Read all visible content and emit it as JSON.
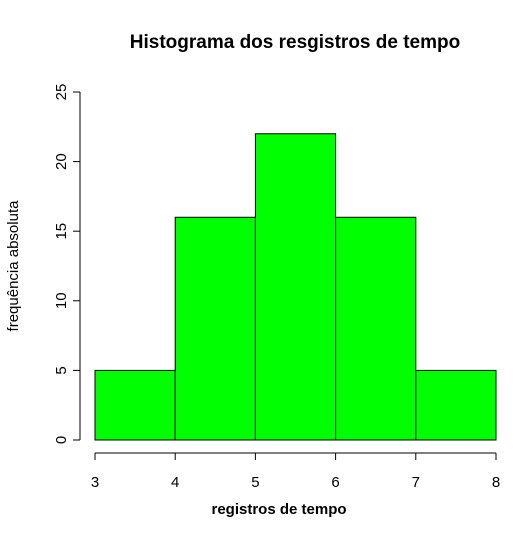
{
  "chart_data": {
    "type": "bar",
    "title": "Histograma dos resgistros de tempo",
    "xlabel": "registros de tempo",
    "ylabel": "frequência absoluta",
    "bin_edges": [
      3,
      4,
      5,
      6,
      7,
      8
    ],
    "values": [
      5,
      16,
      22,
      16,
      5
    ],
    "xlim": [
      3,
      8
    ],
    "ylim": [
      0,
      25
    ],
    "x_ticks": [
      3,
      4,
      5,
      6,
      7,
      8
    ],
    "y_ticks": [
      0,
      5,
      10,
      15,
      20,
      25
    ],
    "bar_color": "#00ff00",
    "grid": false,
    "legend": "none"
  }
}
